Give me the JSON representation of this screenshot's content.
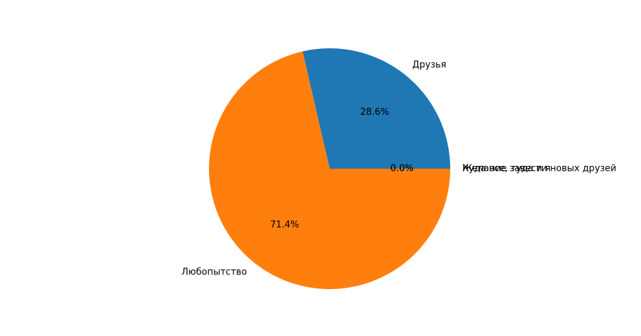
{
  "chart_data": {
    "type": "pie",
    "title": "",
    "categories": [
      "Друзья",
      "Любопытство",
      "Куда все, туда и я",
      "Желание завести новых друзей"
    ],
    "values": [
      28.6,
      71.4,
      0.0,
      0.0
    ],
    "labels_pct": [
      "28.6%",
      "71.4%",
      "0.0%",
      "0.0%"
    ],
    "colors": [
      "#1f77b4",
      "#ff7f0e",
      "#2ca02c",
      "#d62728"
    ],
    "start_angle_deg": 0,
    "direction": "counterclockwise",
    "legend": "none"
  }
}
